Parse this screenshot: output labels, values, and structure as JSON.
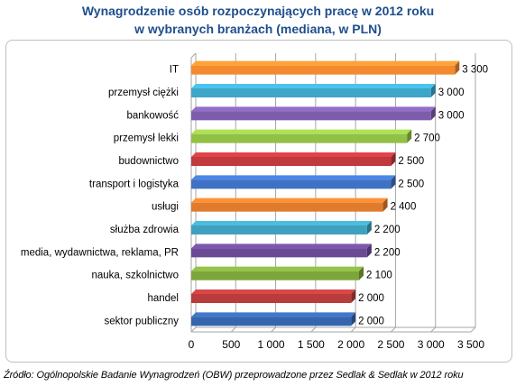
{
  "title_line1": "Wynagrodzenie osób rozpoczynających pracę w 2012 roku",
  "title_line2": "w wybranych branżach (mediana, w PLN)",
  "source": "Źródło: Ogólnopolskie Badanie Wynagrodzeń (OBW) przeprowadzone przez Sedlak & Sedlak w 2012 roku",
  "chart_data": {
    "type": "bar",
    "orientation": "horizontal",
    "title": "Wynagrodzenie osób rozpoczynających pracę w 2012 roku w wybranych branżach (mediana, w PLN)",
    "categories": [
      "IT",
      "przemysł ciężki",
      "bankowość",
      "przemysł lekki",
      "budownictwo",
      "transport i logistyka",
      "usługi",
      "służba zdrowia",
      "media, wydawnictwa,  reklama, PR",
      "nauka, szkolnictwo",
      "handel",
      "sektor publiczny"
    ],
    "values": [
      3300,
      3000,
      3000,
      2700,
      2500,
      2500,
      2400,
      2200,
      2200,
      2100,
      2000,
      2000
    ],
    "value_labels": [
      "3 300",
      "3 000",
      "3 000",
      "2 700",
      "2 500",
      "2 500",
      "2 400",
      "2 200",
      "2 200",
      "2 100",
      "2 000",
      "2 000"
    ],
    "colors": [
      "#f38a2e",
      "#3ea6c9",
      "#7c5cab",
      "#92c046",
      "#c0393c",
      "#3f72c4",
      "#e07b2d",
      "#3fa1bd",
      "#6a4a94",
      "#7da63a",
      "#b83c3c",
      "#3566ad"
    ],
    "xlim": [
      0,
      3500
    ],
    "xticks": [
      0,
      500,
      1000,
      1500,
      2000,
      2500,
      3000,
      3500
    ],
    "xtick_labels": [
      "0",
      "500",
      "1 000",
      "1 500",
      "2 000",
      "2 500",
      "3 000",
      "3 500"
    ],
    "grid": true,
    "style": "3d"
  }
}
